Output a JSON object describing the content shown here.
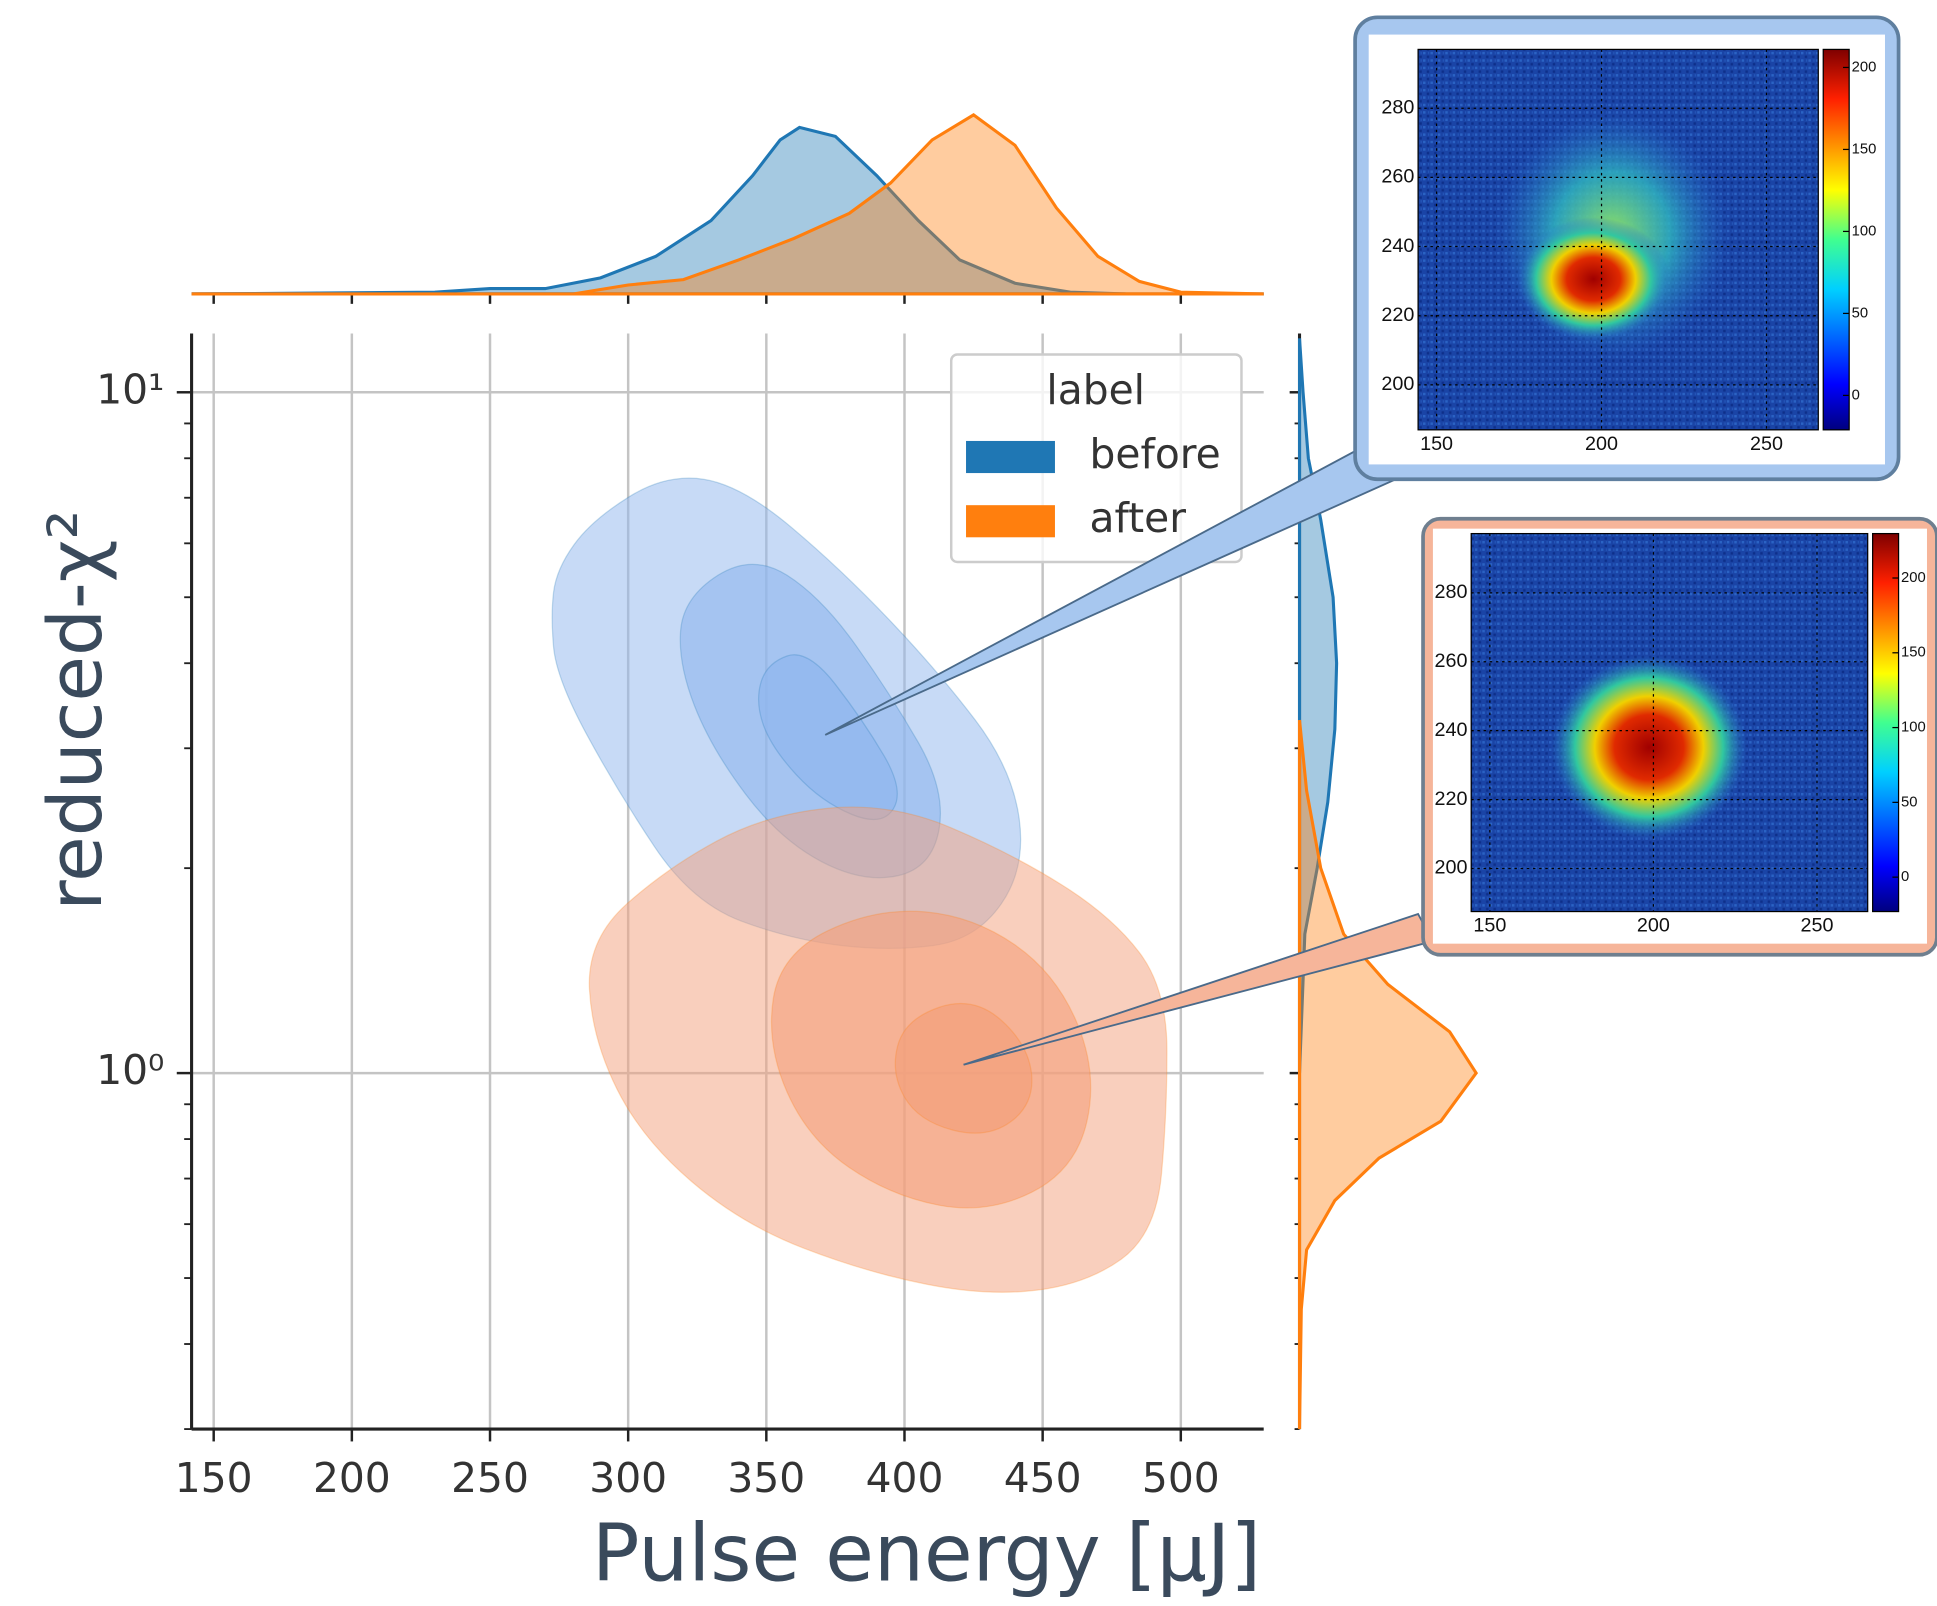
{
  "chart_data": {
    "type": "kde-joint",
    "xlabel": "Pulse energy [µJ]",
    "ylabel": "reduced-χ²",
    "xlim": [
      142,
      530
    ],
    "xticks": [
      150,
      200,
      250,
      300,
      350,
      400,
      450,
      500
    ],
    "ylim": [
      0.3,
      12.2
    ],
    "yscale": "log",
    "yticks": [
      {
        "value": 1,
        "label": "10⁰"
      },
      {
        "value": 10,
        "label": "10¹"
      }
    ],
    "minor_yticks": [
      0.3,
      0.4,
      0.5,
      0.6,
      0.7,
      0.8,
      0.9,
      2,
      3,
      4,
      5,
      6,
      7,
      8,
      9
    ],
    "grid": true,
    "legend_title": "label",
    "legend_position": "upper right",
    "series": [
      {
        "name": "before",
        "color": "#1f77b4",
        "contour_color": "#8fb6ee",
        "contours": [
          [
            [
              274,
              5.5
            ],
            [
              287,
              6.5
            ],
            [
              314,
              7.6
            ],
            [
              341,
              7.3
            ],
            [
              377,
              5.5
            ],
            [
              412,
              3.9
            ],
            [
              439,
              2.8
            ],
            [
              444,
              2.0
            ],
            [
              426,
              1.57
            ],
            [
              395,
              1.51
            ],
            [
              359,
              1.57
            ],
            [
              323,
              1.78
            ],
            [
              296,
              2.6
            ],
            [
              274,
              3.8
            ],
            [
              272,
              4.7
            ]
          ],
          [
            [
              320,
              5.0
            ],
            [
              345,
              5.8
            ],
            [
              370,
              5.0
            ],
            [
              395,
              3.6
            ],
            [
              415,
              2.6
            ],
            [
              410,
              2.0
            ],
            [
              385,
              1.9
            ],
            [
              355,
              2.2
            ],
            [
              330,
              3.0
            ],
            [
              318,
              4.0
            ]
          ],
          [
            [
              350,
              4.0
            ],
            [
              365,
              4.2
            ],
            [
              385,
              3.3
            ],
            [
              400,
              2.6
            ],
            [
              392,
              2.3
            ],
            [
              370,
              2.5
            ],
            [
              352,
              3.0
            ],
            [
              346,
              3.5
            ]
          ]
        ],
        "x_density": {
          "x": [
            142,
            230,
            250,
            270,
            290,
            310,
            330,
            345,
            355,
            362,
            375,
            390,
            405,
            420,
            440,
            460,
            480
          ],
          "values": [
            0,
            0.01,
            0.03,
            0.03,
            0.09,
            0.21,
            0.41,
            0.66,
            0.86,
            0.93,
            0.88,
            0.66,
            0.41,
            0.19,
            0.06,
            0.01,
            0
          ]
        },
        "y_density": {
          "y": [
            1.0,
            1.6,
            2.0,
            2.5,
            3.2,
            4.0,
            5.0,
            6.5,
            8,
            10,
            12
          ],
          "values": [
            0,
            0.03,
            0.1,
            0.16,
            0.2,
            0.21,
            0.19,
            0.12,
            0.05,
            0.02,
            0
          ]
        }
      },
      {
        "name": "after",
        "color": "#ff7f0e",
        "contour_color": "#f3a07c",
        "contours": [
          [
            [
              285,
              1.57
            ],
            [
              314,
              2.0
            ],
            [
              350,
              2.4
            ],
            [
              395,
              2.5
            ],
            [
              439,
              2.1
            ],
            [
              475,
              1.7
            ],
            [
              495,
              1.33
            ],
            [
              495,
              0.87
            ],
            [
              491,
              0.58
            ],
            [
              466,
              0.49
            ],
            [
              430,
              0.47
            ],
            [
              386,
              0.51
            ],
            [
              341,
              0.6
            ],
            [
              305,
              0.8
            ],
            [
              287,
              1.12
            ]
          ],
          [
            [
              355,
              1.5
            ],
            [
              390,
              1.75
            ],
            [
              425,
              1.7
            ],
            [
              455,
              1.4
            ],
            [
              470,
              1.0
            ],
            [
              462,
              0.72
            ],
            [
              430,
              0.62
            ],
            [
              395,
              0.66
            ],
            [
              365,
              0.8
            ],
            [
              350,
              1.1
            ]
          ],
          [
            [
              400,
              1.2
            ],
            [
              425,
              1.3
            ],
            [
              445,
              1.1
            ],
            [
              447,
              0.9
            ],
            [
              430,
              0.8
            ],
            [
              405,
              0.85
            ],
            [
              395,
              1.0
            ]
          ]
        ],
        "x_density": {
          "x": [
            142,
            280,
            300,
            320,
            340,
            360,
            380,
            395,
            410,
            425,
            440,
            455,
            470,
            485,
            500,
            530
          ],
          "values": [
            0,
            0,
            0.05,
            0.08,
            0.19,
            0.31,
            0.45,
            0.62,
            0.86,
            1,
            0.83,
            0.48,
            0.21,
            0.07,
            0.01,
            0
          ]
        },
        "y_density": {
          "y": [
            0.3,
            0.45,
            0.55,
            0.65,
            0.75,
            0.85,
            1.0,
            1.15,
            1.35,
            1.6,
            2.0,
            2.6,
            3.3
          ],
          "values": [
            0,
            0.01,
            0.04,
            0.2,
            0.45,
            0.8,
            1.0,
            0.85,
            0.5,
            0.25,
            0.12,
            0.04,
            0
          ]
        }
      }
    ],
    "insets": [
      {
        "xlim": [
          144.4,
          265.7
        ],
        "xticks": [
          150,
          200,
          250
        ],
        "ylim": [
          187,
          297
        ],
        "yticks": [
          200,
          220,
          240,
          260,
          280
        ],
        "clim": [
          -21,
          211
        ],
        "cticks": [
          0,
          50,
          100,
          150,
          200
        ]
      },
      {
        "xlim": [
          144.3,
          265.5
        ],
        "xticks": [
          150,
          200,
          250
        ],
        "ylim": [
          187.5,
          297.2
        ],
        "yticks": [
          200,
          220,
          240,
          260,
          280
        ],
        "clim": [
          -23,
          229.7
        ],
        "cticks": [
          0,
          50,
          100,
          150,
          200
        ]
      }
    ]
  }
}
